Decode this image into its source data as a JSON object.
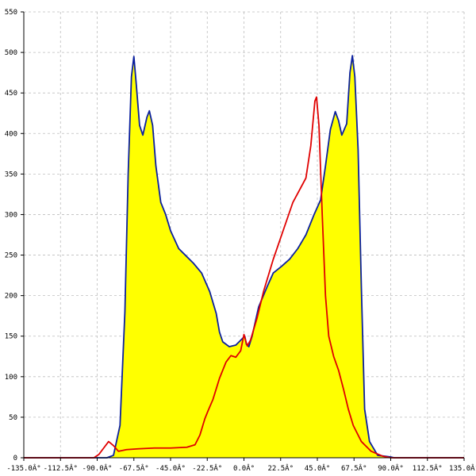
{
  "chart_data": {
    "type": "area",
    "title": "",
    "xlabel": "",
    "ylabel": "",
    "xlim": [
      -135,
      135
    ],
    "ylim": [
      0,
      550
    ],
    "grid": true,
    "x_ticks": [
      -135,
      -112.5,
      -90,
      -67.5,
      -45,
      -22.5,
      0,
      22.5,
      45,
      67.5,
      90,
      112.5,
      135
    ],
    "x_tick_labels": [
      "-135.0Â°",
      "-112.5Â°",
      "-90.0Â°",
      "-67.5Â°",
      "-45.0Â°",
      "-22.5Â°",
      "0.0Â°",
      "22.5Â°",
      "45.0Â°",
      "67.5Â°",
      "90.0Â°",
      "112.5Â°",
      "135.0Â°"
    ],
    "y_ticks": [
      0,
      50,
      100,
      150,
      200,
      250,
      300,
      350,
      400,
      450,
      500,
      550
    ],
    "y_tick_labels": [
      "0",
      "50",
      "100",
      "150",
      "200",
      "250",
      "300",
      "350",
      "400",
      "450",
      "500",
      "550"
    ],
    "colors": {
      "fill": "#ffff00",
      "series_blue": "#0a1f9e",
      "series_red": "#e00000"
    },
    "series": [
      {
        "color": "#0a1f9e",
        "fill": true,
        "points": [
          [
            -135,
            0
          ],
          [
            -92,
            0
          ],
          [
            -84,
            0
          ],
          [
            -80,
            3
          ],
          [
            -76,
            40
          ],
          [
            -73,
            180
          ],
          [
            -71,
            350
          ],
          [
            -69,
            470
          ],
          [
            -67.5,
            495
          ],
          [
            -66,
            460
          ],
          [
            -64,
            410
          ],
          [
            -62,
            398
          ],
          [
            -59.5,
            420
          ],
          [
            -58,
            428
          ],
          [
            -56,
            410
          ],
          [
            -54,
            360
          ],
          [
            -51,
            315
          ],
          [
            -48,
            300
          ],
          [
            -45,
            280
          ],
          [
            -40,
            258
          ],
          [
            -36,
            250
          ],
          [
            -31,
            240
          ],
          [
            -26,
            228
          ],
          [
            -21,
            205
          ],
          [
            -17,
            178
          ],
          [
            -15,
            155
          ],
          [
            -13,
            143
          ],
          [
            -9,
            137
          ],
          [
            -5,
            139
          ],
          [
            -2,
            145
          ],
          [
            0.5,
            150
          ],
          [
            1.5,
            140
          ],
          [
            3,
            137
          ],
          [
            5,
            150
          ],
          [
            9,
            186
          ],
          [
            14,
            210
          ],
          [
            18,
            228
          ],
          [
            23,
            236
          ],
          [
            28,
            245
          ],
          [
            33,
            258
          ],
          [
            38,
            275
          ],
          [
            43,
            300
          ],
          [
            47,
            318
          ],
          [
            50,
            360
          ],
          [
            53,
            405
          ],
          [
            56,
            427
          ],
          [
            58,
            416
          ],
          [
            60,
            398
          ],
          [
            63,
            412
          ],
          [
            65,
            475
          ],
          [
            66.5,
            496
          ],
          [
            68,
            470
          ],
          [
            70,
            380
          ],
          [
            72,
            210
          ],
          [
            74,
            60
          ],
          [
            77,
            20
          ],
          [
            82,
            3
          ],
          [
            90,
            1
          ],
          [
            92,
            0
          ],
          [
            135,
            0
          ]
        ]
      },
      {
        "color": "#e00000",
        "fill": false,
        "points": [
          [
            -135,
            0
          ],
          [
            -92,
            0
          ],
          [
            -89,
            4
          ],
          [
            -86,
            12
          ],
          [
            -83,
            20
          ],
          [
            -80,
            15
          ],
          [
            -77,
            8
          ],
          [
            -72,
            10
          ],
          [
            -65,
            11
          ],
          [
            -55,
            12
          ],
          [
            -45,
            12
          ],
          [
            -35,
            13
          ],
          [
            -30,
            16
          ],
          [
            -27,
            28
          ],
          [
            -24,
            48
          ],
          [
            -22,
            58
          ],
          [
            -19,
            72
          ],
          [
            -15,
            98
          ],
          [
            -11,
            118
          ],
          [
            -8,
            126
          ],
          [
            -5,
            124
          ],
          [
            -2,
            132
          ],
          [
            0,
            152
          ],
          [
            2,
            138
          ],
          [
            4,
            145
          ],
          [
            8,
            172
          ],
          [
            12,
            205
          ],
          [
            18,
            245
          ],
          [
            24,
            280
          ],
          [
            30,
            315
          ],
          [
            34,
            330
          ],
          [
            38,
            345
          ],
          [
            41,
            385
          ],
          [
            43.5,
            440
          ],
          [
            44.5,
            445
          ],
          [
            46,
            410
          ],
          [
            48,
            300
          ],
          [
            50,
            200
          ],
          [
            52,
            150
          ],
          [
            55,
            125
          ],
          [
            58,
            108
          ],
          [
            61,
            85
          ],
          [
            64,
            60
          ],
          [
            67,
            40
          ],
          [
            72,
            20
          ],
          [
            78,
            8
          ],
          [
            85,
            2
          ],
          [
            90,
            0
          ],
          [
            135,
            0
          ]
        ]
      }
    ]
  }
}
